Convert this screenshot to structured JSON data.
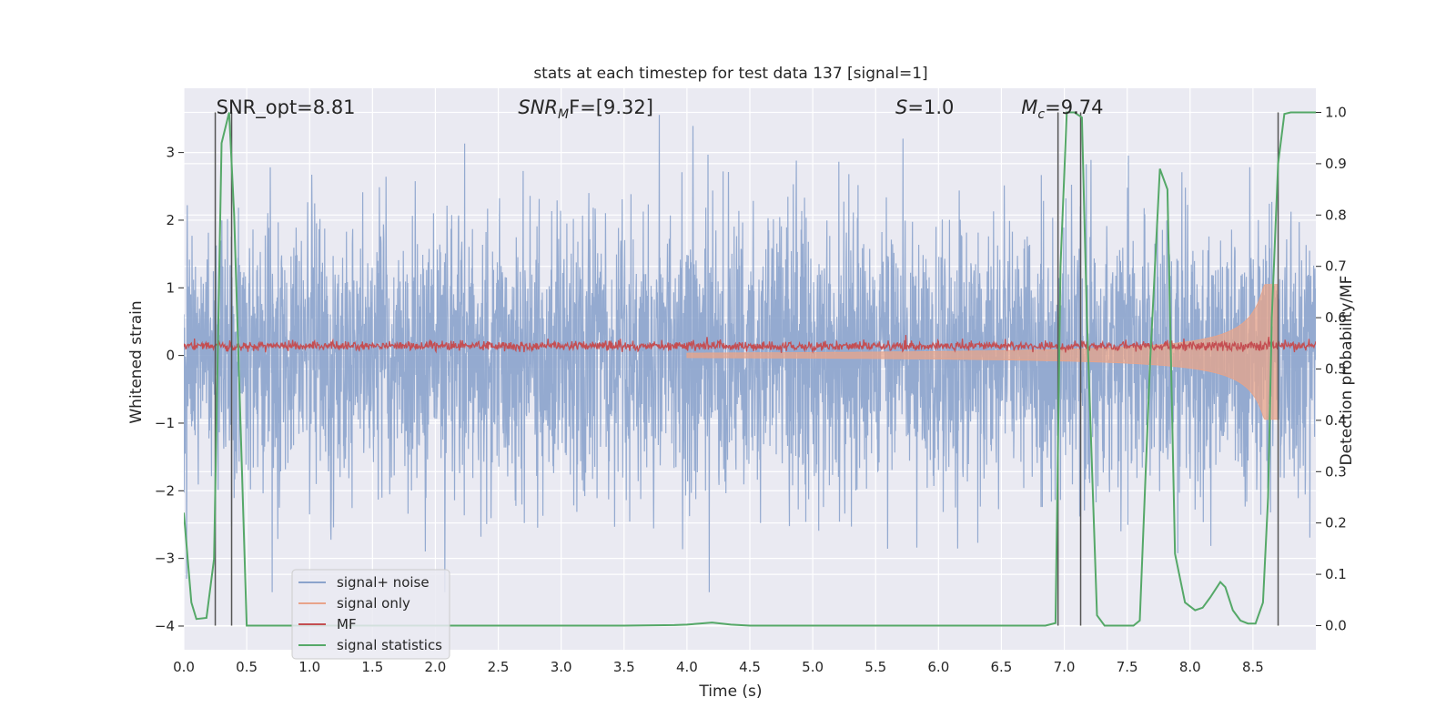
{
  "chart_data": {
    "type": "line",
    "title": "stats at each timestep for test data 137 [signal=1]",
    "xlabel": "Time (s)",
    "ylabel_left": "Whitened strain",
    "ylabel_right": "Detection probability/MF",
    "xlim": [
      0.0,
      9.0
    ],
    "ylim_left": [
      -4.35,
      3.95
    ],
    "ylim_right": [
      -0.047,
      1.047
    ],
    "x_ticks": [
      "0.0",
      "0.5",
      "1.0",
      "1.5",
      "2.0",
      "2.5",
      "3.0",
      "3.5",
      "4.0",
      "4.5",
      "5.0",
      "5.5",
      "6.0",
      "6.5",
      "7.0",
      "7.5",
      "8.0",
      "8.5"
    ],
    "y_ticks_left": [
      "−4",
      "−3",
      "−2",
      "−1",
      "0",
      "1",
      "2",
      "3"
    ],
    "y_ticks_right": [
      "0.0",
      "0.1",
      "0.2",
      "0.3",
      "0.4",
      "0.5",
      "0.6",
      "0.7",
      "0.8",
      "0.9",
      "1.0"
    ],
    "grid": true,
    "legend_position": "lower-left",
    "annotations": [
      {
        "prefix": "SNR_opt=",
        "value": "8.81",
        "x": 0.2
      },
      {
        "prefix": "SNR",
        "sub": "M",
        "mid": "F=",
        "value": "[9.32]",
        "x": 2.6
      },
      {
        "prefix": "S",
        "mid": "=",
        "value": "1.0",
        "x": 5.6
      },
      {
        "prefix": "M",
        "sub": "c",
        "mid": "=",
        "value": "9.74",
        "x": 6.6
      }
    ],
    "vertical_lines_x": [
      0.25,
      0.38,
      6.95,
      7.13,
      8.7
    ],
    "series": [
      {
        "name": "signal+ noise",
        "color": "#8ba3cc",
        "kind": "noise",
        "amplitude_range": [
          -3.5,
          3.6
        ]
      },
      {
        "name": "signal only",
        "color": "#e8a48a",
        "kind": "chirp",
        "end_x": 8.7,
        "max_amplitude": 1.05
      },
      {
        "name": "MF",
        "color": "#c44e52",
        "kind": "mf",
        "level": 0.14
      },
      {
        "name": "signal statistics",
        "color": "#55a868",
        "axis": "right",
        "x": [
          0.0,
          0.06,
          0.1,
          0.18,
          0.24,
          0.3,
          0.36,
          0.4,
          0.45,
          0.5,
          0.6,
          1.0,
          2.0,
          3.0,
          3.5,
          3.9,
          4.0,
          4.1,
          4.2,
          4.35,
          4.5,
          5.0,
          6.0,
          6.5,
          6.85,
          6.93,
          6.97,
          7.02,
          7.08,
          7.14,
          7.18,
          7.26,
          7.32,
          7.4,
          7.55,
          7.6,
          7.68,
          7.76,
          7.82,
          7.88,
          7.96,
          8.04,
          8.1,
          8.16,
          8.24,
          8.28,
          8.34,
          8.4,
          8.46,
          8.52,
          8.58,
          8.62,
          8.65,
          8.7,
          8.75,
          8.8,
          8.9,
          9.0
        ],
        "y": [
          0.22,
          0.045,
          0.013,
          0.015,
          0.13,
          0.94,
          1.0,
          0.8,
          0.4,
          0.0,
          0.0,
          0.0,
          0.0,
          0.0,
          0.0,
          0.001,
          0.002,
          0.004,
          0.006,
          0.002,
          0.0,
          0.0,
          0.0,
          0.0,
          0.0,
          0.005,
          0.7,
          1.0,
          1.0,
          0.99,
          0.6,
          0.02,
          0.0,
          0.0,
          0.0,
          0.01,
          0.5,
          0.89,
          0.85,
          0.14,
          0.045,
          0.03,
          0.035,
          0.055,
          0.085,
          0.075,
          0.03,
          0.01,
          0.004,
          0.004,
          0.045,
          0.25,
          0.6,
          0.9,
          0.997,
          1.0,
          1.0,
          1.0
        ]
      }
    ]
  }
}
